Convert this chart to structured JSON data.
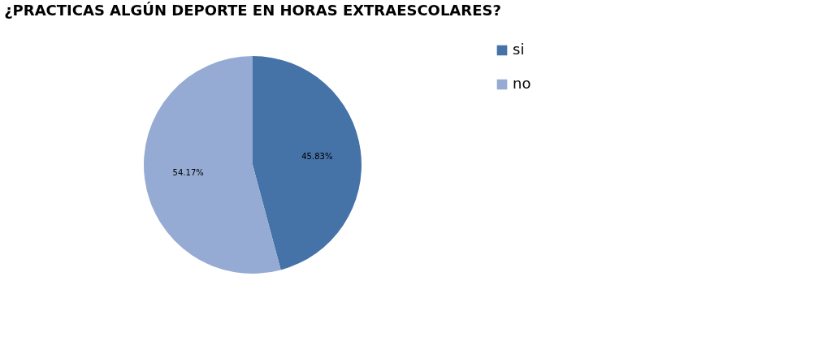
{
  "chart_data": {
    "type": "pie",
    "title": "¿PRACTICAS ALGÚN DEPORTE EN HORAS EXTRAESCOLARES?",
    "categories": [
      "si",
      "no"
    ],
    "values": [
      45.83,
      54.17
    ],
    "colors": [
      "#4572a7",
      "#95abd3"
    ],
    "value_labels": [
      "45.83%",
      "54.17%"
    ],
    "legend": "right"
  }
}
